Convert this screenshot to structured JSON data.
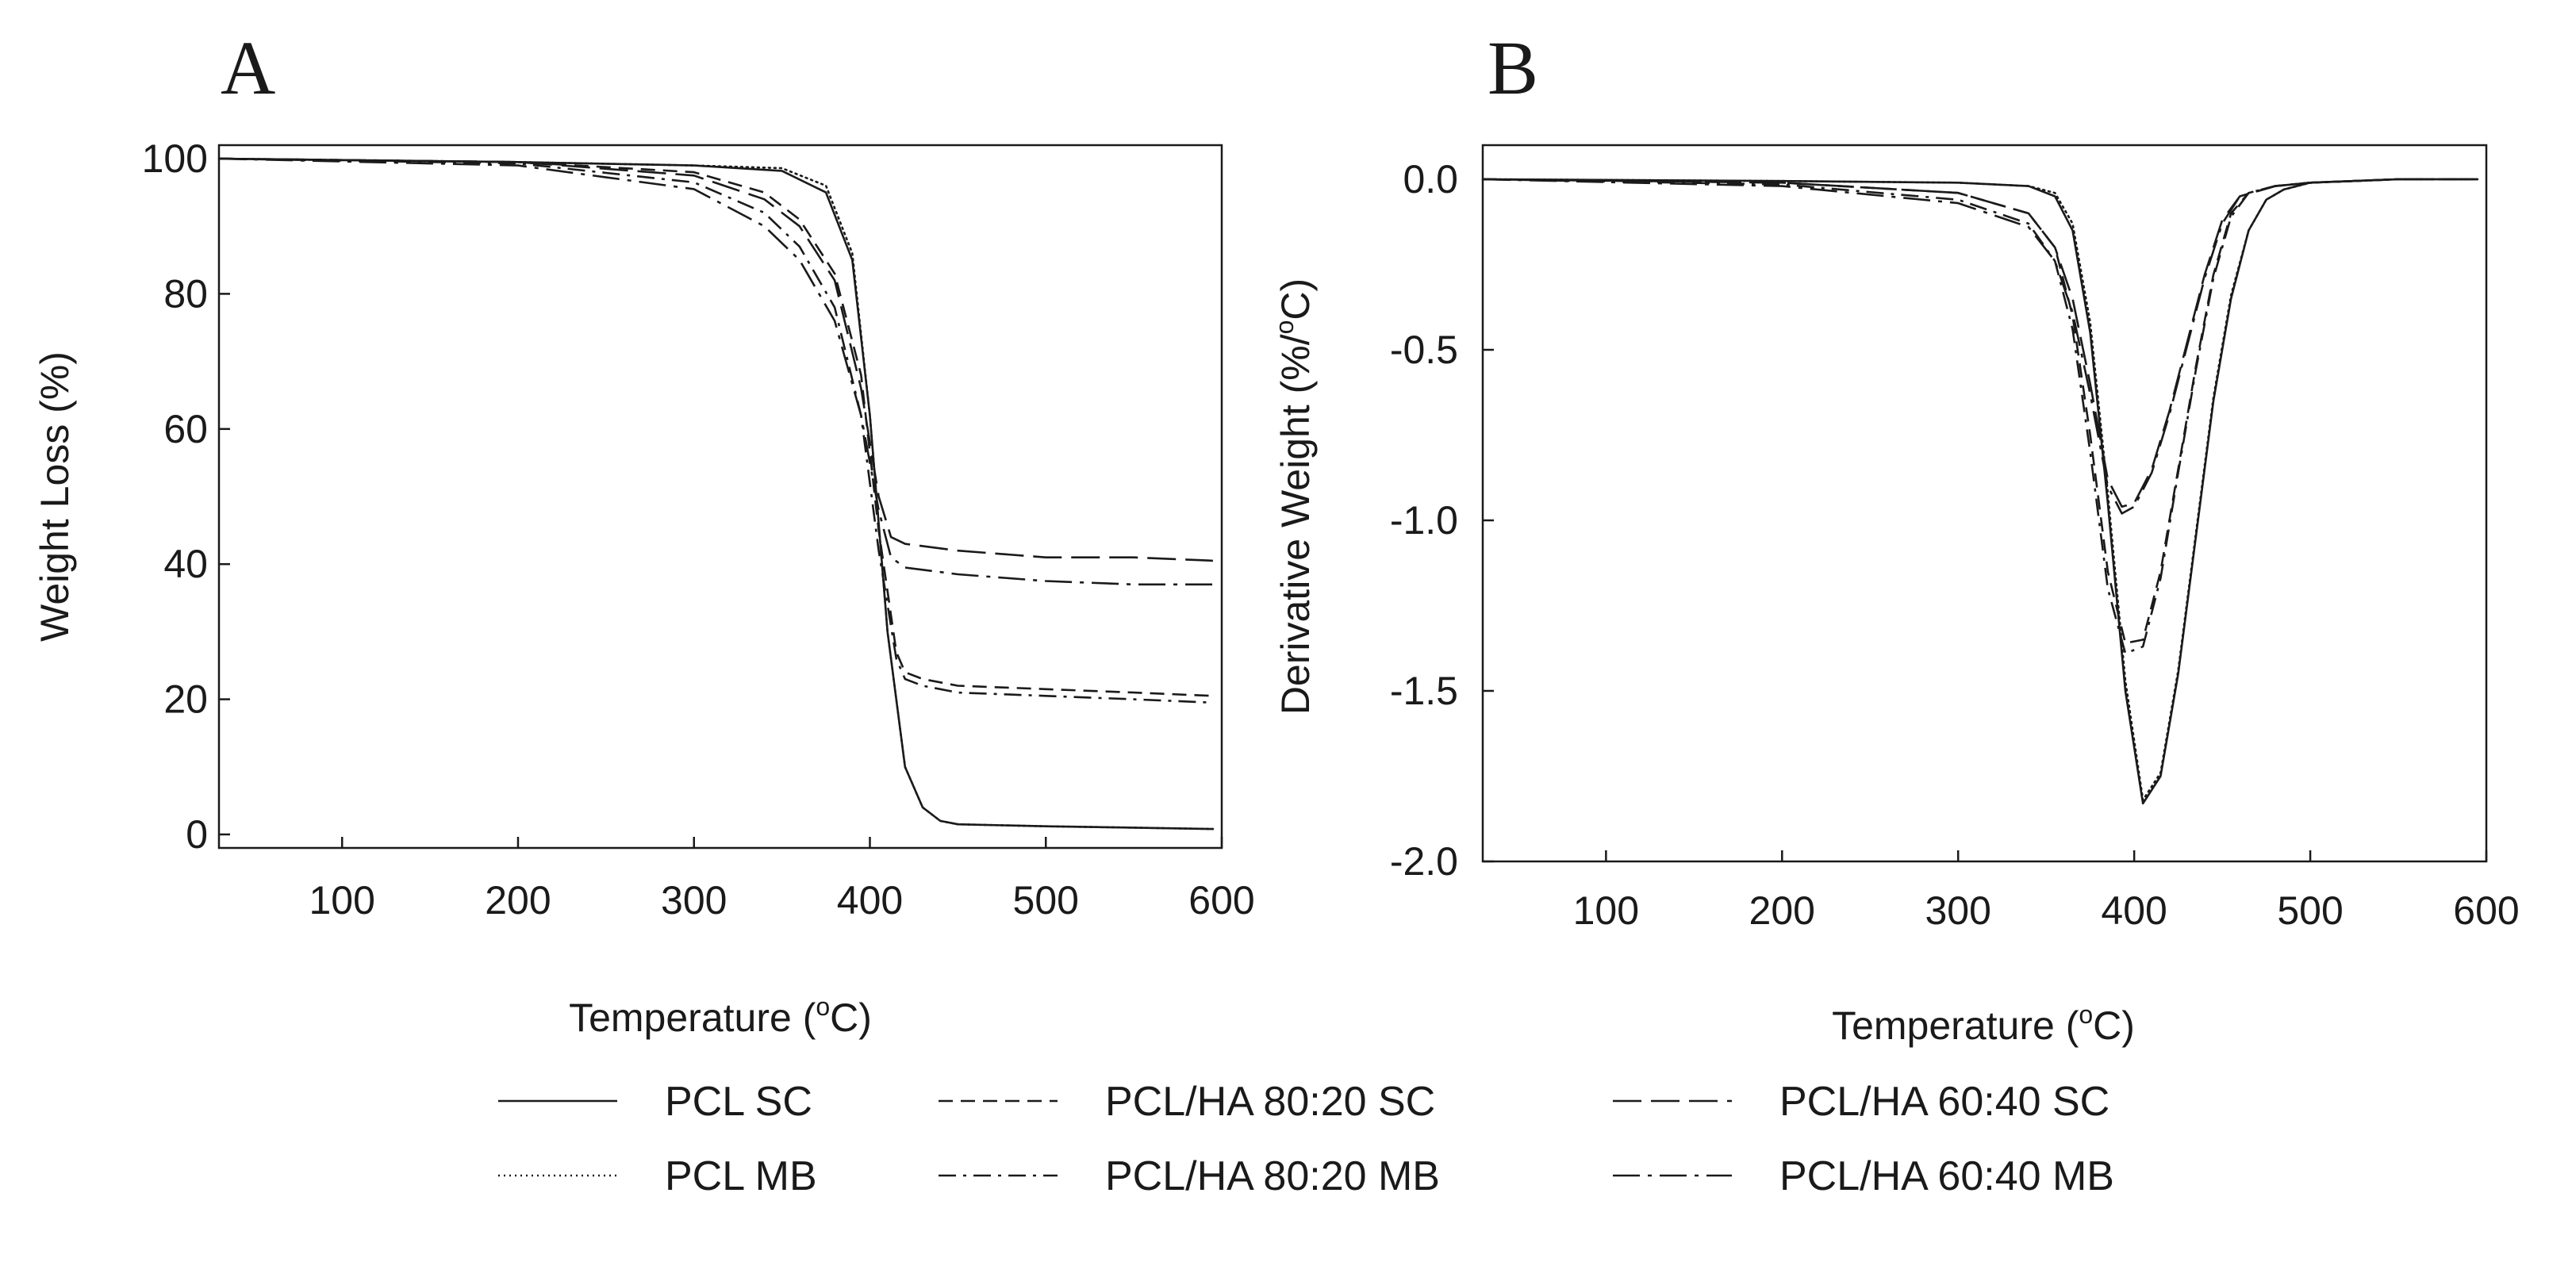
{
  "chart_data": [
    {
      "panel": "A",
      "type": "line",
      "xlabel": "Temperature",
      "ylabel": "Weight Loss (%)",
      "xunit_degree": "o",
      "xunit_scale": "C",
      "xlim": [
        30,
        600
      ],
      "ylim": [
        -2,
        102
      ],
      "xticks": [
        100,
        200,
        300,
        400,
        500,
        600
      ],
      "yticks": [
        0,
        20,
        40,
        60,
        80,
        100
      ],
      "ytick_labels": [
        "0",
        "20",
        "40",
        "60",
        "80",
        "100"
      ],
      "grid": false,
      "series": [
        {
          "name": "PCL SC",
          "style": "solid",
          "x": [
            30,
            200,
            300,
            350,
            375,
            390,
            400,
            410,
            420,
            430,
            440,
            450,
            500,
            550,
            595
          ],
          "y": [
            100,
            99.5,
            99,
            98.2,
            95,
            85,
            62,
            30,
            10,
            4,
            2,
            1.5,
            1.2,
            1.0,
            0.8
          ]
        },
        {
          "name": "PCL MB",
          "style": "dotted",
          "x": [
            30,
            200,
            300,
            350,
            375,
            390,
            400,
            410,
            420,
            430,
            440,
            450,
            500,
            550,
            595
          ],
          "y": [
            100,
            99.5,
            99,
            98.6,
            96,
            86,
            62,
            30,
            10,
            4,
            2,
            1.5,
            1.2,
            1.0,
            0.8
          ]
        },
        {
          "name": "PCL/HA 80:20 SC",
          "style": "dashed",
          "x": [
            30,
            200,
            300,
            340,
            360,
            380,
            395,
            405,
            415,
            420,
            430,
            450,
            500,
            550,
            595
          ],
          "y": [
            100,
            99.5,
            98,
            95,
            91,
            83,
            68,
            45,
            27,
            24,
            23,
            22,
            21.5,
            21,
            20.5
          ]
        },
        {
          "name": "PCL/HA 80:20 MB",
          "style": "dashdot",
          "x": [
            30,
            200,
            300,
            340,
            360,
            380,
            395,
            405,
            415,
            420,
            430,
            450,
            500,
            550,
            595
          ],
          "y": [
            100,
            99.3,
            96.5,
            92,
            87,
            78,
            62,
            42,
            26,
            23,
            22,
            21,
            20.5,
            20,
            19.5
          ]
        },
        {
          "name": "PCL/HA 60:40 SC",
          "style": "longdash",
          "x": [
            30,
            200,
            300,
            340,
            360,
            380,
            395,
            405,
            412,
            420,
            450,
            500,
            550,
            595
          ],
          "y": [
            100,
            99.5,
            97.5,
            94,
            90,
            82,
            66,
            50,
            44,
            43,
            42,
            41,
            41,
            40.5
          ]
        },
        {
          "name": "PCL/HA 60:40 MB",
          "style": "longdashdot",
          "x": [
            30,
            200,
            300,
            340,
            360,
            380,
            395,
            405,
            412,
            420,
            450,
            500,
            550,
            595
          ],
          "y": [
            100,
            99,
            95.5,
            90,
            85,
            76,
            62,
            48,
            41,
            39.5,
            38.5,
            37.5,
            37,
            37
          ]
        }
      ]
    },
    {
      "panel": "B",
      "type": "line",
      "xlabel": "Temperature",
      "ylabel": "Derivative Weight (%/",
      "ylabel_degree": "o",
      "ylabel_end": "C)",
      "xunit_degree": "o",
      "xunit_scale": "C",
      "xlim": [
        30,
        600
      ],
      "ylim": [
        -2.0,
        0.1
      ],
      "xticks": [
        100,
        200,
        300,
        400,
        500,
        600
      ],
      "yticks": [
        0.0,
        -0.5,
        -1.0,
        -1.5,
        -2.0
      ],
      "ytick_labels": [
        "0.0",
        "-0.5",
        "-1.0",
        "-1.5",
        "-2.0"
      ],
      "grid": false,
      "series": [
        {
          "name": "PCL SC",
          "style": "solid",
          "x": [
            30,
            200,
            300,
            340,
            355,
            365,
            375,
            385,
            395,
            405,
            415,
            425,
            435,
            445,
            455,
            465,
            475,
            485,
            500,
            550,
            595
          ],
          "y": [
            0,
            -0.005,
            -0.01,
            -0.02,
            -0.05,
            -0.15,
            -0.45,
            -0.95,
            -1.5,
            -1.83,
            -1.75,
            -1.45,
            -1.05,
            -0.65,
            -0.35,
            -0.15,
            -0.06,
            -0.03,
            -0.01,
            0,
            0
          ]
        },
        {
          "name": "PCL MB",
          "style": "dotted",
          "x": [
            30,
            200,
            300,
            340,
            355,
            365,
            375,
            385,
            395,
            405,
            415,
            425,
            435,
            445,
            455,
            465,
            475,
            485,
            500,
            550,
            595
          ],
          "y": [
            0,
            -0.005,
            -0.01,
            -0.02,
            -0.04,
            -0.13,
            -0.42,
            -0.92,
            -1.47,
            -1.82,
            -1.74,
            -1.44,
            -1.04,
            -0.64,
            -0.34,
            -0.15,
            -0.06,
            -0.03,
            -0.01,
            0,
            0
          ]
        },
        {
          "name": "PCL/HA 80:20 SC",
          "style": "dashed",
          "x": [
            30,
            200,
            300,
            340,
            355,
            365,
            375,
            385,
            395,
            405,
            415,
            425,
            435,
            445,
            455,
            465,
            480,
            500,
            550,
            595
          ],
          "y": [
            0,
            -0.01,
            -0.04,
            -0.1,
            -0.2,
            -0.4,
            -0.75,
            -1.15,
            -1.36,
            -1.35,
            -1.15,
            -0.85,
            -0.55,
            -0.28,
            -0.1,
            -0.04,
            -0.02,
            -0.01,
            0,
            0
          ]
        },
        {
          "name": "PCL/HA 80:20 MB",
          "style": "dashdot",
          "x": [
            30,
            200,
            300,
            340,
            355,
            365,
            375,
            385,
            395,
            405,
            415,
            425,
            435,
            445,
            455,
            465,
            480,
            500,
            550,
            595
          ],
          "y": [
            0,
            -0.015,
            -0.06,
            -0.13,
            -0.24,
            -0.44,
            -0.8,
            -1.2,
            -1.39,
            -1.37,
            -1.17,
            -0.86,
            -0.56,
            -0.29,
            -0.11,
            -0.04,
            -0.02,
            -0.01,
            0,
            0
          ]
        },
        {
          "name": "PCL/HA 60:40 SC",
          "style": "longdash",
          "x": [
            30,
            200,
            300,
            340,
            355,
            365,
            375,
            385,
            393,
            400,
            410,
            420,
            430,
            440,
            450,
            460,
            480,
            500,
            550,
            595
          ],
          "y": [
            0,
            -0.01,
            -0.04,
            -0.1,
            -0.2,
            -0.35,
            -0.6,
            -0.88,
            -0.96,
            -0.95,
            -0.85,
            -0.68,
            -0.48,
            -0.28,
            -0.12,
            -0.05,
            -0.02,
            -0.01,
            0,
            0
          ]
        },
        {
          "name": "PCL/HA 60:40 MB",
          "style": "longdashdot",
          "x": [
            30,
            200,
            300,
            340,
            355,
            365,
            375,
            385,
            393,
            400,
            410,
            420,
            430,
            440,
            450,
            460,
            480,
            500,
            550,
            595
          ],
          "y": [
            0,
            -0.02,
            -0.07,
            -0.14,
            -0.24,
            -0.39,
            -0.63,
            -0.9,
            -0.98,
            -0.96,
            -0.86,
            -0.69,
            -0.49,
            -0.29,
            -0.13,
            -0.05,
            -0.02,
            -0.01,
            0,
            0
          ]
        }
      ]
    }
  ],
  "legend": [
    {
      "label": "PCL SC",
      "style": "solid"
    },
    {
      "label": "PCL/HA 80:20 SC",
      "style": "dashed"
    },
    {
      "label": "PCL/HA 60:40 SC",
      "style": "longdash"
    },
    {
      "label": "PCL MB",
      "style": "dotted"
    },
    {
      "label": "PCL/HA 80:20 MB",
      "style": "dashdot"
    },
    {
      "label": "PCL/HA 60:40 MB",
      "style": "longdashdot"
    }
  ],
  "colors": {
    "line": "#1a1a1a",
    "axis": "#1a1a1a",
    "background": "#ffffff"
  }
}
